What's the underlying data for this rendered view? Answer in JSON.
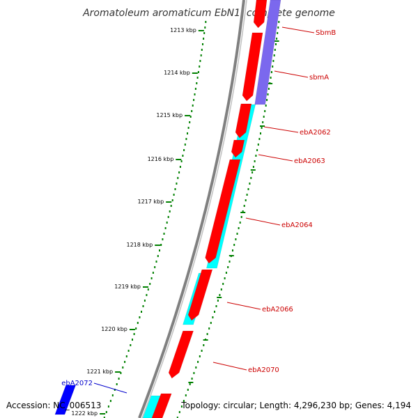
{
  "title": "Aromatoleum aromaticum EbN1, complete genome",
  "accession": "Accession: NC_006513",
  "topology": "Topology: circular; Length: 4,296,230 bp; Genes: 4,194",
  "colors": {
    "backbone": "#808080",
    "forward_gene": "#ff0000",
    "reverse_gene": "#0000ff",
    "cds_forward": "#00ffff",
    "cds_reverse": "#7b68ee",
    "ruler": "#008000",
    "label_forward": "#cc0000",
    "label_reverse": "#0000cc"
  },
  "ruler": {
    "unit": "kbp",
    "ticks": [
      "1213 kbp",
      "1214 kbp",
      "1215 kbp",
      "1216 kbp",
      "1217 kbp",
      "1218 kbp",
      "1219 kbp",
      "1220 kbp",
      "1221 kbp",
      "1222 kbp"
    ]
  },
  "gene_labels": [
    {
      "name": "SbmB",
      "strand": "forward"
    },
    {
      "name": "sbmA",
      "strand": "forward"
    },
    {
      "name": "ebA2062",
      "strand": "forward"
    },
    {
      "name": "ebA2063",
      "strand": "forward"
    },
    {
      "name": "ebA2064",
      "strand": "forward"
    },
    {
      "name": "ebA2066",
      "strand": "forward"
    },
    {
      "name": "ebA2070",
      "strand": "forward"
    },
    {
      "name": "ebA2072",
      "strand": "reverse"
    }
  ]
}
